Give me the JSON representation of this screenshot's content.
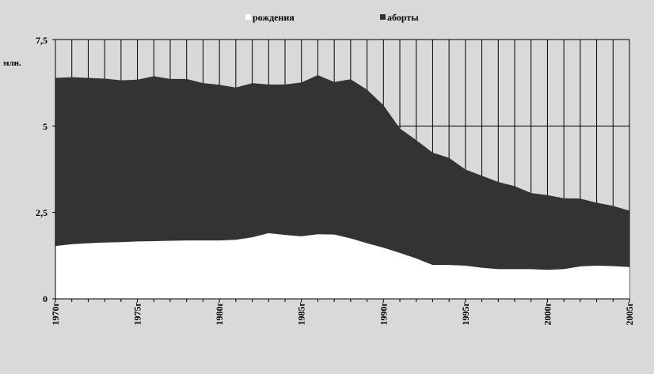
{
  "chart_data": {
    "type": "area",
    "stacked": true,
    "y_unit_label": "млн.",
    "ylim": [
      0,
      7.5
    ],
    "y_ticks": [
      "0",
      "2,5",
      "5",
      "7,5"
    ],
    "y_tick_values": [
      0,
      2.5,
      5,
      7.5
    ],
    "x": [
      1970,
      1971,
      1972,
      1973,
      1974,
      1975,
      1976,
      1977,
      1978,
      1979,
      1980,
      1981,
      1982,
      1983,
      1984,
      1985,
      1986,
      1987,
      1988,
      1989,
      1990,
      1991,
      1992,
      1993,
      1994,
      1995,
      1996,
      1997,
      1998,
      1999,
      2000,
      2001,
      2002,
      2003,
      2004,
      2005
    ],
    "x_tick_labels": [
      "1970г",
      "1975г",
      "1980г",
      "1985г",
      "1990г",
      "1995г",
      "2000г",
      "2005г"
    ],
    "x_tick_values": [
      1970,
      1975,
      1980,
      1985,
      1990,
      1995,
      2000,
      2005
    ],
    "grid": "vertical lines each year, horizontal line at 5",
    "legend_position": "top",
    "series": [
      {
        "name": "рождения",
        "color": "#ffffff",
        "values": [
          1.53,
          1.58,
          1.61,
          1.63,
          1.64,
          1.66,
          1.67,
          1.68,
          1.69,
          1.69,
          1.69,
          1.71,
          1.78,
          1.9,
          1.85,
          1.81,
          1.87,
          1.86,
          1.75,
          1.61,
          1.48,
          1.33,
          1.17,
          0.98,
          0.98,
          0.96,
          0.9,
          0.86,
          0.86,
          0.86,
          0.84,
          0.86,
          0.94,
          0.96,
          0.95,
          0.92
        ]
      },
      {
        "name": "аборты",
        "color": "#333333",
        "values": [
          4.86,
          4.83,
          4.78,
          4.74,
          4.68,
          4.68,
          4.77,
          4.68,
          4.67,
          4.55,
          4.5,
          4.4,
          4.46,
          4.3,
          4.35,
          4.45,
          4.6,
          4.41,
          4.6,
          4.44,
          4.12,
          3.6,
          3.42,
          3.25,
          3.1,
          2.78,
          2.66,
          2.52,
          2.4,
          2.2,
          2.16,
          2.05,
          1.96,
          1.82,
          1.74,
          1.63
        ]
      }
    ]
  }
}
